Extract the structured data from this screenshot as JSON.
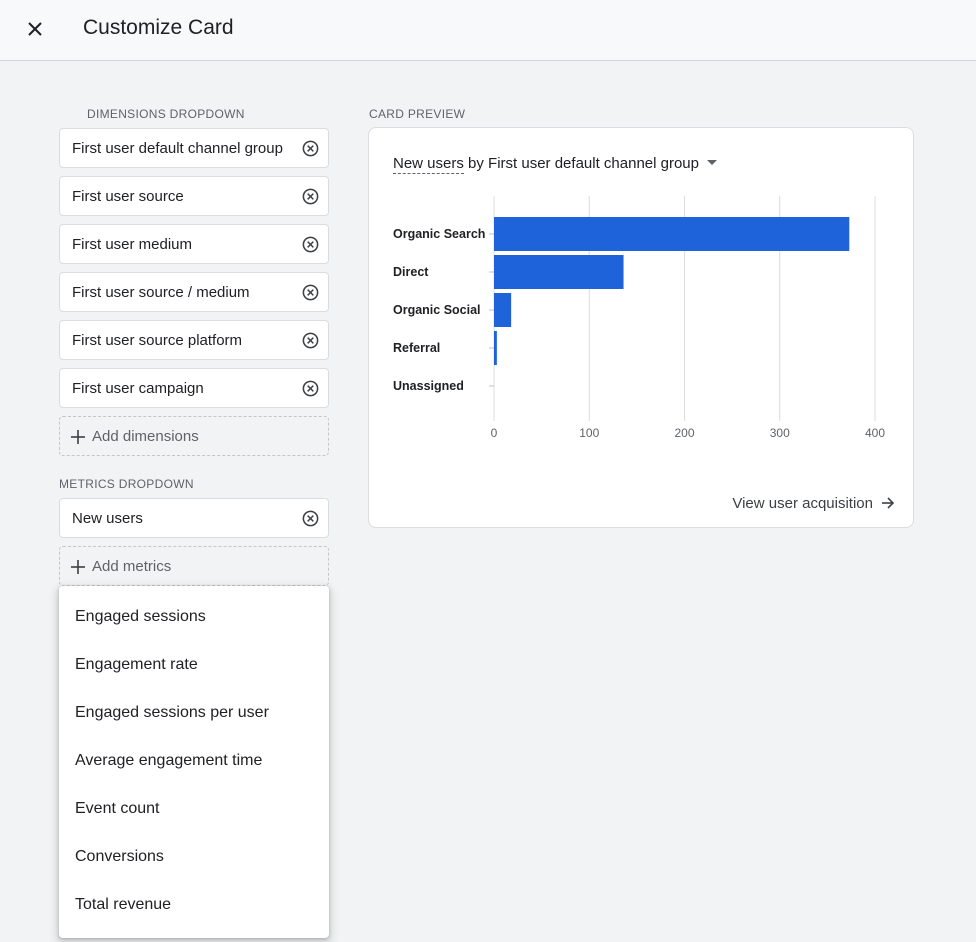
{
  "header": {
    "title": "Customize Card",
    "close_icon": "close-icon"
  },
  "dimensions": {
    "label": "DIMENSIONS DROPDOWN",
    "items": [
      "First user default channel group",
      "First user source",
      "First user medium",
      "First user source / medium",
      "First user source platform",
      "First user campaign"
    ],
    "add_label": "Add dimensions"
  },
  "metrics": {
    "label": "METRICS DROPDOWN",
    "items": [
      "New users"
    ],
    "add_label": "Add metrics"
  },
  "metrics_menu": {
    "options": [
      "Engaged sessions",
      "Engagement rate",
      "Engaged sessions per user",
      "Average engagement time",
      "Event count",
      "Conversions",
      "Total revenue"
    ]
  },
  "preview": {
    "label": "CARD PREVIEW",
    "title_metric": "New users",
    "title_rest": "by First user default channel group",
    "link_label": "View user acquisition"
  },
  "colors": {
    "bar": "#1e63da",
    "accent": "#1a73e8"
  },
  "chart_data": {
    "type": "bar",
    "orientation": "horizontal",
    "categories": [
      "Organic Search",
      "Direct",
      "Organic Social",
      "Referral",
      "Unassigned"
    ],
    "values": [
      373,
      136,
      18,
      3,
      0
    ],
    "xlim": [
      0,
      400
    ],
    "xticks": [
      0,
      100,
      200,
      300,
      400
    ],
    "grid": true,
    "title": "New users by First user default channel group"
  }
}
